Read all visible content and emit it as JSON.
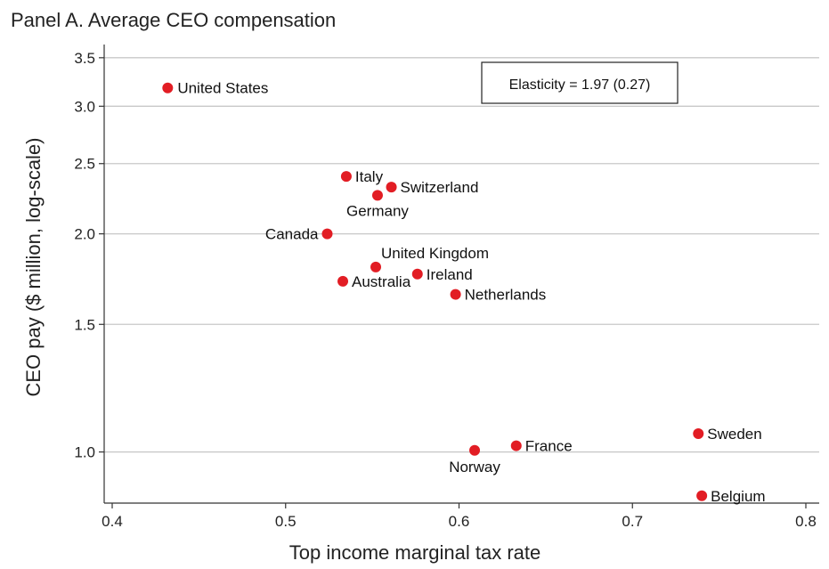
{
  "chart_data": {
    "type": "scatter",
    "title": "Panel A. Average CEO compensation",
    "xlabel": "Top income marginal tax rate",
    "ylabel": "CEO pay ($ million, log-scale)",
    "x_scale": "linear",
    "y_scale": "log",
    "xlim": [
      0.4,
      0.8
    ],
    "ylim": [
      0.85,
      3.65
    ],
    "x_ticks": [
      "0.4",
      "0.5",
      "0.6",
      "0.7",
      "0.8"
    ],
    "y_ticks": [
      "1.0",
      "1.5",
      "2.0",
      "2.5",
      "3.0",
      "3.5"
    ],
    "grid": "horizontal",
    "point_color": "#e21d24",
    "annotation": "Elasticity = 1.97 (0.27)",
    "points": [
      {
        "label": "United States",
        "x": 0.432,
        "y": 3.18
      },
      {
        "label": "Italy",
        "x": 0.535,
        "y": 2.4
      },
      {
        "label": "Switzerland",
        "x": 0.561,
        "y": 2.32
      },
      {
        "label": "Germany",
        "x": 0.553,
        "y": 2.26
      },
      {
        "label": "Canada",
        "x": 0.524,
        "y": 2.0
      },
      {
        "label": "United Kingdom",
        "x": 0.552,
        "y": 1.8
      },
      {
        "label": "Ireland",
        "x": 0.576,
        "y": 1.76
      },
      {
        "label": "Australia",
        "x": 0.533,
        "y": 1.72
      },
      {
        "label": "Netherlands",
        "x": 0.598,
        "y": 1.65
      },
      {
        "label": "Sweden",
        "x": 0.738,
        "y": 1.06
      },
      {
        "label": "France",
        "x": 0.633,
        "y": 1.02
      },
      {
        "label": "Norway",
        "x": 0.609,
        "y": 1.005
      },
      {
        "label": "Belgium",
        "x": 0.74,
        "y": 0.87
      }
    ]
  }
}
